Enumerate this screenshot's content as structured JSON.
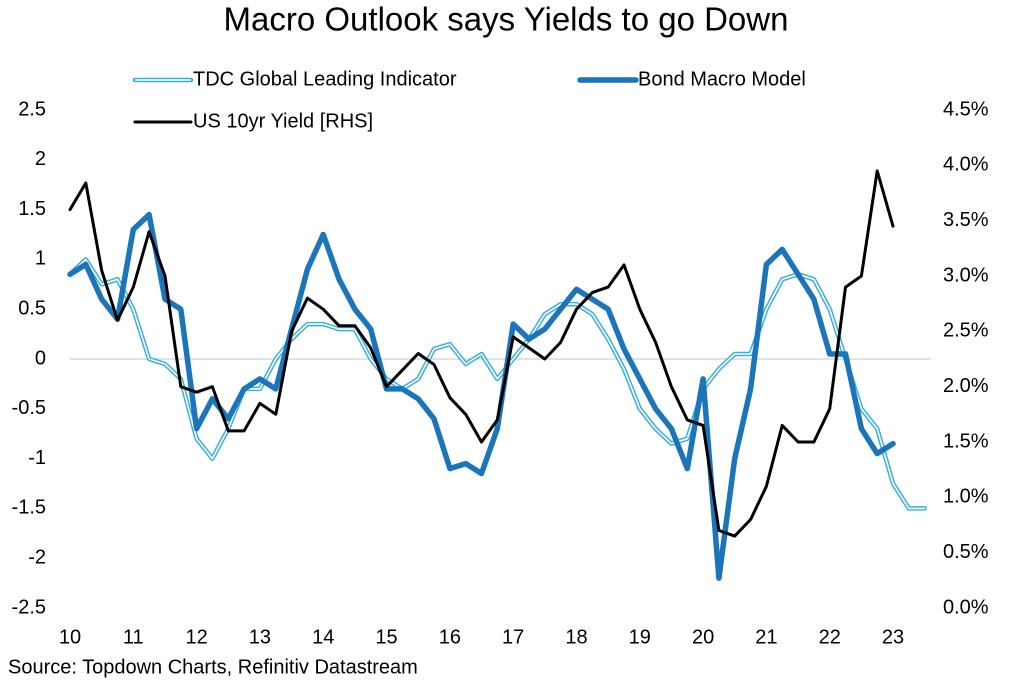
{
  "chart_data": {
    "type": "line",
    "title": "Macro Outlook says Yields to go Down",
    "source": "Source: Topdown Charts, Refinitiv Datastream",
    "x": [
      10,
      10.25,
      10.5,
      10.75,
      11,
      11.25,
      11.5,
      11.75,
      12,
      12.25,
      12.5,
      12.75,
      13,
      13.25,
      13.5,
      13.75,
      14,
      14.25,
      14.5,
      14.75,
      15,
      15.25,
      15.5,
      15.75,
      16,
      16.25,
      16.5,
      16.75,
      17,
      17.25,
      17.5,
      17.75,
      18,
      18.25,
      18.5,
      18.75,
      19,
      19.25,
      19.5,
      19.75,
      20,
      20.25,
      20.5,
      20.75,
      21,
      21.25,
      21.5,
      21.75,
      22,
      22.25,
      22.5,
      22.75,
      23,
      23.25,
      23.5
    ],
    "series": [
      {
        "name": "TDC Global Leading Indicator",
        "color": "#36aedc",
        "values": [
          0.85,
          1.0,
          0.75,
          0.8,
          0.5,
          0.0,
          -0.05,
          -0.2,
          -0.8,
          -1.0,
          -0.7,
          -0.3,
          -0.3,
          0.0,
          0.2,
          0.35,
          0.35,
          0.3,
          0.3,
          0.0,
          -0.2,
          -0.3,
          -0.2,
          0.1,
          0.15,
          -0.05,
          0.05,
          -0.2,
          0.0,
          0.2,
          0.45,
          0.55,
          0.55,
          0.45,
          0.2,
          -0.1,
          -0.5,
          -0.7,
          -0.85,
          -0.8,
          -0.3,
          -0.1,
          0.05,
          0.05,
          0.5,
          0.8,
          0.85,
          0.8,
          0.5,
          0.0,
          -0.5,
          -0.7,
          -1.25,
          -1.5,
          -1.5
        ]
      },
      {
        "name": "Bond Macro Model",
        "color": "#1a75bb",
        "values": [
          0.85,
          0.95,
          0.6,
          0.4,
          1.3,
          1.45,
          0.6,
          0.5,
          -0.7,
          -0.4,
          -0.6,
          -0.3,
          -0.2,
          -0.3,
          0.3,
          0.9,
          1.25,
          0.8,
          0.5,
          0.3,
          -0.3,
          -0.3,
          -0.4,
          -0.6,
          -1.1,
          -1.05,
          -1.15,
          -0.7,
          0.35,
          0.2,
          0.3,
          0.5,
          0.7,
          0.6,
          0.5,
          0.1,
          -0.2,
          -0.5,
          -0.7,
          -1.1,
          -0.2,
          -2.2,
          -1.0,
          -0.3,
          0.95,
          1.1,
          0.85,
          0.6,
          0.05,
          0.05,
          -0.7,
          -0.95,
          -0.85,
          null,
          null
        ]
      },
      {
        "name": "US 10yr Yield [RHS]",
        "color": "#000000",
        "axis": "y2",
        "values": [
          3.6,
          3.84,
          3.05,
          2.6,
          2.9,
          3.4,
          3.0,
          2.0,
          1.95,
          2.0,
          1.6,
          1.6,
          1.85,
          1.75,
          2.5,
          2.8,
          2.7,
          2.55,
          2.55,
          2.35,
          2.0,
          2.15,
          2.3,
          2.2,
          1.9,
          1.75,
          1.5,
          1.7,
          2.45,
          2.35,
          2.25,
          2.4,
          2.7,
          2.85,
          2.9,
          3.1,
          2.7,
          2.4,
          2.0,
          1.7,
          1.65,
          0.7,
          0.65,
          0.8,
          1.1,
          1.65,
          1.5,
          1.5,
          1.8,
          2.9,
          3.0,
          3.95,
          3.45,
          null,
          null
        ]
      }
    ],
    "xlim": [
      10,
      23.6
    ],
    "xticks": [
      10,
      11,
      12,
      13,
      14,
      15,
      16,
      17,
      18,
      19,
      20,
      21,
      22,
      23
    ],
    "ylim": [
      -2.5,
      2.5
    ],
    "yticks": [
      -2.5,
      -2,
      -1.5,
      -1,
      -0.5,
      0,
      0.5,
      1,
      1.5,
      2,
      2.5
    ],
    "y2lim": [
      0,
      4.5
    ],
    "y2ticks": [
      {
        "value": 0,
        "label": "0.0%"
      },
      {
        "value": 0.5,
        "label": "0.5%"
      },
      {
        "value": 1,
        "label": "1.0%"
      },
      {
        "value": 1.5,
        "label": "1.5%"
      },
      {
        "value": 2,
        "label": "2.0%"
      },
      {
        "value": 2.5,
        "label": "2.5%"
      },
      {
        "value": 3,
        "label": "3.0%"
      },
      {
        "value": 3.5,
        "label": "3.5%"
      },
      {
        "value": 4,
        "label": "4.0%"
      },
      {
        "value": 4.5,
        "label": "4.5%"
      }
    ]
  }
}
